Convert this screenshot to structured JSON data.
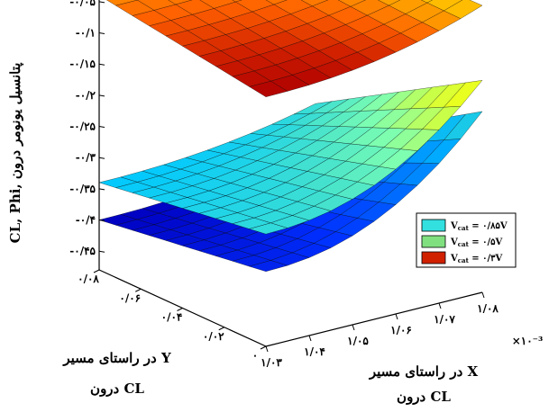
{
  "chart_data": {
    "type": "surface3d",
    "z_label": "CL, Phi, پتانسیل یونومر درون",
    "x_label_line1": "در راستای مسیر X",
    "x_label_line2": "درون CL",
    "y_label_line1": "در راستای مسیر Y",
    "y_label_line2": "درون CL",
    "x_exponent": "×۱۰⁻³",
    "z_ticks": [
      "-۰/۰۵",
      "-۰/۱",
      "-۰/۱۵",
      "-۰/۲",
      "-۰/۲۵",
      "-۰/۳",
      "-۰/۳۵",
      "-۰/۴",
      "-۰/۴۵"
    ],
    "z_tick_values": [
      -0.05,
      -0.1,
      -0.15,
      -0.2,
      -0.25,
      -0.3,
      -0.35,
      -0.4,
      -0.45
    ],
    "z_range": [
      -0.48,
      -0.03
    ],
    "x_ticks": [
      "۱/۰۳",
      "۱/۰۴",
      "۱/۰۵",
      "۱/۰۶",
      "۱/۰۷",
      "۱/۰۸"
    ],
    "x_tick_values": [
      1.03,
      1.04,
      1.05,
      1.06,
      1.07,
      1.08
    ],
    "x_range": [
      1.03,
      1.08
    ],
    "y_ticks": [
      "۰",
      "۰/۰۲",
      "۰/۰۴",
      "۰/۰۶",
      "۰/۰۸"
    ],
    "y_tick_values": [
      0,
      0.02,
      0.04,
      0.06,
      0.08
    ],
    "y_range": [
      0,
      0.08
    ],
    "grid": true,
    "legend_position": "right",
    "series": [
      {
        "name": "Vcat = ۰/۸۵V",
        "sub": "cat",
        "prefix": "V",
        "suffix": " = ۰/۸۵V",
        "color": "#33e0e0",
        "z_front_left": -0.3,
        "z_front_right": -0.14,
        "z_back": -0.34,
        "colormap": [
          "#00c8ff",
          "#40e0d0",
          "#7fffb0",
          "#d0ff40",
          "#ffff00"
        ]
      },
      {
        "name": "Vcat = ۰/۵V",
        "sub": "cat",
        "prefix": "V",
        "suffix": " = ۰/۵V",
        "color": "#80e080",
        "z_front_left": -0.36,
        "z_front_right": -0.19,
        "z_back": -0.4,
        "colormap": [
          "#0000c0",
          "#0030ff",
          "#0070ff",
          "#00b0ff",
          "#30e0d0"
        ]
      },
      {
        "name": "Vcat = ۰/۳V",
        "sub": "cat",
        "prefix": "V",
        "suffix": " = ۰/۳V",
        "color": "#d02000",
        "z_front_left": -0.08,
        "z_front_right": -0.02,
        "z_back": -0.04,
        "colormap": [
          "#b00000",
          "#d02000",
          "#ff6000",
          "#ffa000",
          "#ffd000"
        ]
      }
    ]
  }
}
